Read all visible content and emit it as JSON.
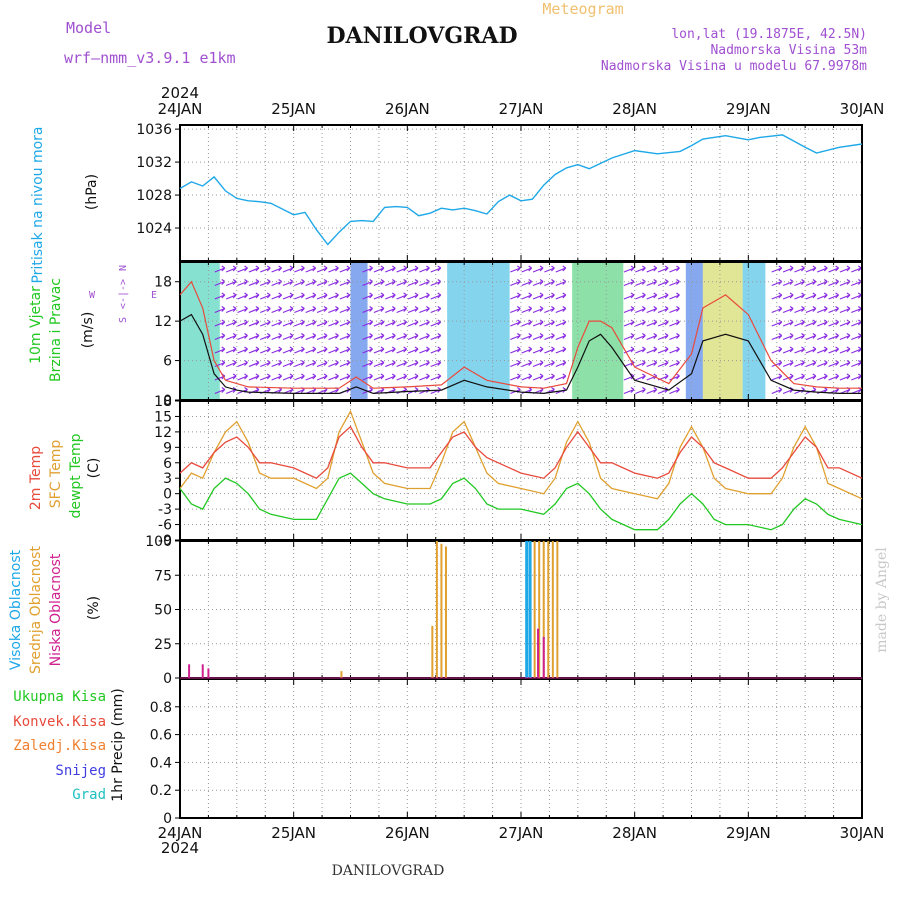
{
  "header": {
    "model_label": "Model",
    "model_name": "wrf—nmm_v3.9.1  e1km",
    "title": "DANILOVGRAD",
    "meteogram_label": "Meteogram",
    "lonlat": "lon,lat (19.1875E, 42.5N)",
    "altitude": "Nadmorska Visina 53m",
    "model_altitude": "Nadmorska Visina u modelu 67.9978m",
    "year": "2024",
    "footer_title": "DANILOVGRAD",
    "watermark": "made by Angel"
  },
  "colors": {
    "pressure": "#1ea8e8",
    "wind_speed": "#111111",
    "wind_gust": "#e84a3c",
    "temp_2m": "#e84a3c",
    "temp_sfc": "#e0a030",
    "dewpoint": "#22c822",
    "cloud_high": "#1ea8e8",
    "cloud_mid": "#e0a030",
    "cloud_low": "#d02090",
    "label_total": "#22c822",
    "label_conv": "#e84a3c",
    "label_frozen": "#f08030",
    "label_snow": "#4040e0",
    "label_hail": "#20c0c0",
    "label_wind_purple": "#a050d0"
  },
  "time_axis": {
    "days": [
      "24JAN",
      "25JAN",
      "26JAN",
      "27JAN",
      "28JAN",
      "29JAN",
      "30JAN"
    ]
  },
  "panels": {
    "pressure": {
      "ylabel_main": "Pritisak na nivou mora",
      "ylabel_unit": "(hPa)"
    },
    "wind": {
      "ylabel_a": "10m Vjetar",
      "ylabel_b": "Brzina i Pravac",
      "ylabel_unit": "(m/s)",
      "compass_n": "N",
      "compass_w": "W",
      "compass_e": "E",
      "compass_s": "S"
    },
    "temperature": {
      "ylabel_a": "2m Temp",
      "ylabel_b": "SFC Temp",
      "ylabel_c": "dewpt Temp",
      "ylabel_unit": "(C)"
    },
    "cloud": {
      "ylabel_a": "Visoka Oblacnost",
      "ylabel_b": "Srednja Oblacnost",
      "ylabel_c": "Niska Oblacnost",
      "ylabel_unit": "(%)"
    },
    "precip": {
      "label_total": "Ukupna Kisa",
      "label_conv": "Konvek.Kisa",
      "label_frozen": "Zaledj.Kisa",
      "label_snow": "Snijeg",
      "label_hail": "Grad",
      "ylabel": "1hr Precip (mm)"
    }
  },
  "chart_data": [
    {
      "type": "line",
      "name": "pressure",
      "ylim": [
        1020,
        1036.5
      ],
      "yticks": [
        1024,
        1028,
        1032,
        1036
      ],
      "grid": true,
      "x_days": [
        0,
        0.1,
        0.2,
        0.3,
        0.4,
        0.5,
        0.6,
        0.7,
        0.8,
        1.0,
        1.1,
        1.2,
        1.3,
        1.4,
        1.5,
        1.6,
        1.7,
        1.8,
        1.9,
        2.0,
        2.1,
        2.2,
        2.3,
        2.4,
        2.5,
        2.6,
        2.7,
        2.8,
        2.9,
        3.0,
        3.1,
        3.2,
        3.3,
        3.4,
        3.5,
        3.6,
        3.8,
        4.0,
        4.2,
        4.4,
        4.5,
        4.6,
        4.8,
        5.0,
        5.1,
        5.3,
        5.5,
        5.6,
        5.8,
        6.0
      ],
      "values": [
        1028.8,
        1029.6,
        1029.1,
        1030.2,
        1028.5,
        1027.6,
        1027.3,
        1027.2,
        1027.0,
        1025.6,
        1025.9,
        1023.8,
        1022.0,
        1023.5,
        1024.8,
        1024.9,
        1024.8,
        1026.5,
        1026.6,
        1026.5,
        1025.5,
        1025.8,
        1026.4,
        1026.2,
        1026.4,
        1026.1,
        1025.7,
        1027.2,
        1028.0,
        1027.3,
        1027.5,
        1029.2,
        1030.5,
        1031.3,
        1031.7,
        1031.2,
        1032.5,
        1033.4,
        1033.0,
        1033.3,
        1034.0,
        1034.8,
        1035.2,
        1034.7,
        1035.0,
        1035.3,
        1033.8,
        1033.1,
        1033.8,
        1034.2
      ]
    },
    {
      "type": "line",
      "name": "wind",
      "ylim": [
        0,
        21
      ],
      "yticks": [
        0,
        6,
        12,
        18
      ],
      "grid": true,
      "x_days": [
        0,
        0.1,
        0.2,
        0.3,
        0.4,
        0.5,
        0.6,
        1.0,
        1.4,
        1.55,
        1.7,
        2.0,
        2.3,
        2.5,
        2.7,
        3.0,
        3.2,
        3.4,
        3.5,
        3.6,
        3.7,
        3.8,
        4.0,
        4.3,
        4.5,
        4.6,
        4.8,
        5.0,
        5.2,
        5.4,
        5.6,
        5.8,
        6.0
      ],
      "speed": [
        12,
        13,
        10,
        4,
        2,
        1.5,
        1.2,
        1.0,
        1.0,
        2.0,
        1.0,
        1.3,
        1.5,
        3.0,
        2.0,
        1.2,
        1.0,
        1.5,
        5,
        9,
        10,
        8,
        3,
        1.5,
        4,
        9,
        10,
        9,
        3,
        1.5,
        1.2,
        1.0,
        1.0
      ],
      "gust": [
        16,
        18,
        14,
        6,
        3,
        2.5,
        2.0,
        1.8,
        1.8,
        3.5,
        1.8,
        2.0,
        2.3,
        5.0,
        3.0,
        2.0,
        1.8,
        2.5,
        8,
        12,
        12,
        11,
        5,
        2.5,
        7,
        14,
        16,
        13,
        6,
        2.5,
        2.0,
        1.8,
        1.8
      ],
      "series": [
        {
          "name": "wind speed"
        },
        {
          "name": "wind gust"
        }
      ]
    },
    {
      "type": "line",
      "name": "temperature",
      "ylim": [
        -9,
        18
      ],
      "yticks": [
        -9,
        -6,
        -3,
        0,
        3,
        6,
        9,
        12,
        15,
        18
      ],
      "grid": true,
      "x_days": [
        0,
        0.1,
        0.2,
        0.3,
        0.4,
        0.5,
        0.6,
        0.7,
        0.8,
        1.0,
        1.2,
        1.3,
        1.4,
        1.5,
        1.6,
        1.7,
        1.8,
        2.0,
        2.2,
        2.3,
        2.4,
        2.5,
        2.6,
        2.7,
        2.8,
        3.0,
        3.2,
        3.3,
        3.4,
        3.5,
        3.6,
        3.7,
        3.8,
        4.0,
        4.2,
        4.3,
        4.4,
        4.5,
        4.6,
        4.7,
        4.8,
        5.0,
        5.2,
        5.3,
        5.4,
        5.5,
        5.6,
        5.7,
        5.8,
        6.0
      ],
      "series": [
        {
          "name": "2m Temp",
          "values": [
            4,
            6,
            5,
            8,
            10,
            11,
            9,
            6,
            6,
            5,
            3,
            5,
            11,
            13,
            9,
            6,
            6,
            5,
            5,
            8,
            11,
            12,
            9,
            7,
            6,
            4,
            3,
            5,
            9,
            12,
            9,
            6,
            6,
            4,
            3,
            4,
            8,
            11,
            9,
            6,
            5,
            3,
            3,
            5,
            8,
            11,
            9,
            5,
            5,
            3
          ]
        },
        {
          "name": "SFC Temp",
          "values": [
            1,
            4,
            3,
            8,
            12,
            14,
            10,
            4,
            3,
            3,
            1,
            3,
            12,
            16,
            10,
            4,
            2,
            1,
            1,
            6,
            12,
            14,
            9,
            4,
            2,
            1,
            0,
            3,
            10,
            14,
            10,
            3,
            1,
            0,
            -1,
            2,
            9,
            13,
            9,
            3,
            1,
            0,
            0,
            3,
            9,
            13,
            9,
            2,
            1,
            -1
          ]
        },
        {
          "name": "dewpt Temp",
          "values": [
            1,
            -2,
            -3,
            1,
            3,
            2,
            0,
            -3,
            -4,
            -5,
            -5,
            -1,
            3,
            4,
            2,
            0,
            -1,
            -2,
            -2,
            -1,
            2,
            3,
            1,
            -2,
            -3,
            -3,
            -4,
            -2,
            1,
            2,
            0,
            -3,
            -5,
            -7,
            -7,
            -5,
            -2,
            0,
            -2,
            -5,
            -6,
            -6,
            -7,
            -6,
            -3,
            -1,
            -2,
            -4,
            -5,
            -6
          ]
        }
      ]
    },
    {
      "type": "bar",
      "name": "cloud cover",
      "ylim": [
        0,
        100
      ],
      "yticks": [
        0,
        25,
        50,
        75,
        100
      ],
      "grid": true,
      "series": [
        {
          "name": "Visoka Oblacnost",
          "x_days": [
            3.05,
            3.08
          ],
          "values": [
            100,
            100
          ]
        },
        {
          "name": "Srednja Oblacnost",
          "x_days": [
            1.42,
            2.22,
            2.26,
            2.3,
            2.34,
            3.12,
            3.16,
            3.2,
            3.24,
            3.28,
            3.32
          ],
          "values": [
            5,
            38,
            100,
            98,
            96,
            100,
            100,
            100,
            100,
            100,
            100
          ]
        },
        {
          "name": "Niska Oblacnost",
          "x_days": [
            0.08,
            0.2,
            0.25,
            3.15,
            3.2
          ],
          "values": [
            10,
            10,
            7,
            36,
            30
          ]
        }
      ]
    },
    {
      "type": "bar",
      "name": "precipitation",
      "ylim": [
        0,
        1
      ],
      "yticks": [
        0,
        0.2,
        0.4,
        0.6,
        0.8
      ],
      "grid": true,
      "values": []
    }
  ]
}
